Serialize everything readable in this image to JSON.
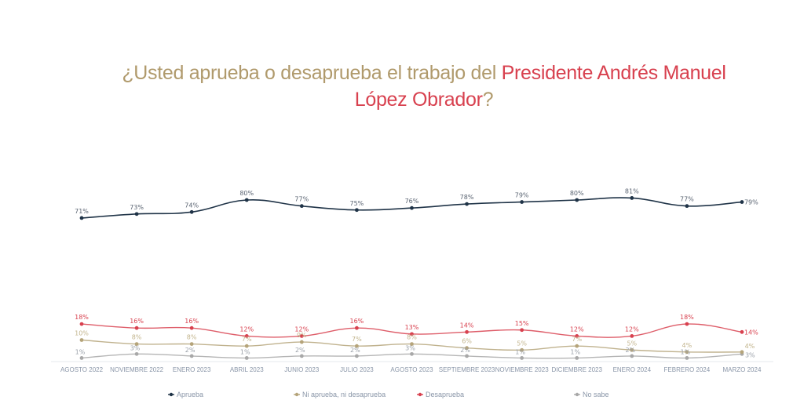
{
  "header": {
    "title_part1": "¿Usted aprueba o desaprueba el trabajo del ",
    "title_part2": "Presidente Andrés Manuel López Obrador",
    "title_part3": "?"
  },
  "colors": {
    "title_gold": "#b09a6c",
    "title_red": "#d8414f",
    "aprueba": "#1f3347",
    "ni": "#b5a47a",
    "desaprueba": "#d8414f",
    "no_sabe": "#a8a8a8",
    "axis": "#e6e9ee"
  },
  "chart_data": {
    "type": "line",
    "title": "¿Usted aprueba o desaprueba el trabajo del Presidente Andrés Manuel López Obrador?",
    "xlabel": "",
    "ylabel": "",
    "ylim": [
      0,
      100
    ],
    "grid": false,
    "legend_position": "bottom",
    "categories": [
      "AGOSTO 2022",
      "NOVIEMBRE 2022",
      "ENERO 2023",
      "ABRIL 2023",
      "JUNIO 2023",
      "JULIO 2023",
      "AGOSTO 2023",
      "SEPTIEMBRE 2023",
      "NOVIEMBRE 2023",
      "DICIEMBRE 2023",
      "ENERO 2024",
      "FEBRERO 2024",
      "MARZO 2024"
    ],
    "series": [
      {
        "key": "aprueba",
        "name": "Aprueba",
        "color": "#1f3347",
        "values": [
          71,
          73,
          74,
          80,
          77,
          75,
          76,
          78,
          79,
          80,
          81,
          77,
          79
        ]
      },
      {
        "key": "ni",
        "name": "Ni aprueba, ni desaprueba",
        "color": "#b5a47a",
        "values": [
          10,
          8,
          8,
          7,
          9,
          7,
          8,
          6,
          5,
          7,
          5,
          4,
          4
        ]
      },
      {
        "key": "desaprueba",
        "name": "Desaprueba",
        "color": "#d8414f",
        "values": [
          18,
          16,
          16,
          12,
          12,
          16,
          13,
          14,
          15,
          12,
          12,
          18,
          14
        ]
      },
      {
        "key": "no_sabe",
        "name": "No sabe",
        "color": "#a8a8a8",
        "values": [
          1,
          3,
          2,
          1,
          2,
          2,
          3,
          2,
          1,
          1,
          2,
          1,
          3
        ]
      }
    ],
    "value_suffix": "%"
  }
}
